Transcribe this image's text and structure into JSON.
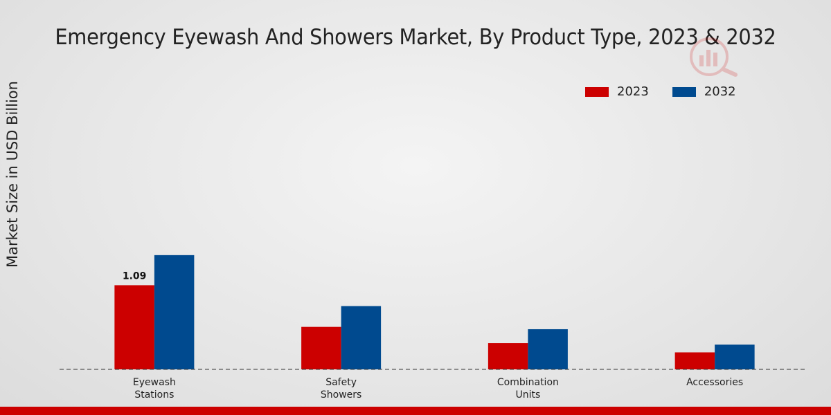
{
  "chart_data": {
    "type": "bar",
    "title": "Emergency Eyewash And Showers Market, By Product Type, 2023 & 2032",
    "xlabel": "",
    "ylabel": "Market Size in USD Billion",
    "categories": [
      "Eyewash\nStations",
      "Safety\nShowers",
      "Combination\nUnits",
      "Accessories"
    ],
    "series": [
      {
        "name": "2023",
        "color": "#cc0000",
        "values": [
          1.09,
          0.55,
          0.34,
          0.22
        ]
      },
      {
        "name": "2032",
        "color": "#004a8f",
        "values": [
          1.48,
          0.82,
          0.52,
          0.32
        ]
      }
    ],
    "data_labels": [
      {
        "series": 0,
        "index": 0,
        "text": "1.09"
      }
    ],
    "ylim": [
      0,
      3.8
    ],
    "grid": false,
    "legend": "top-right"
  }
}
